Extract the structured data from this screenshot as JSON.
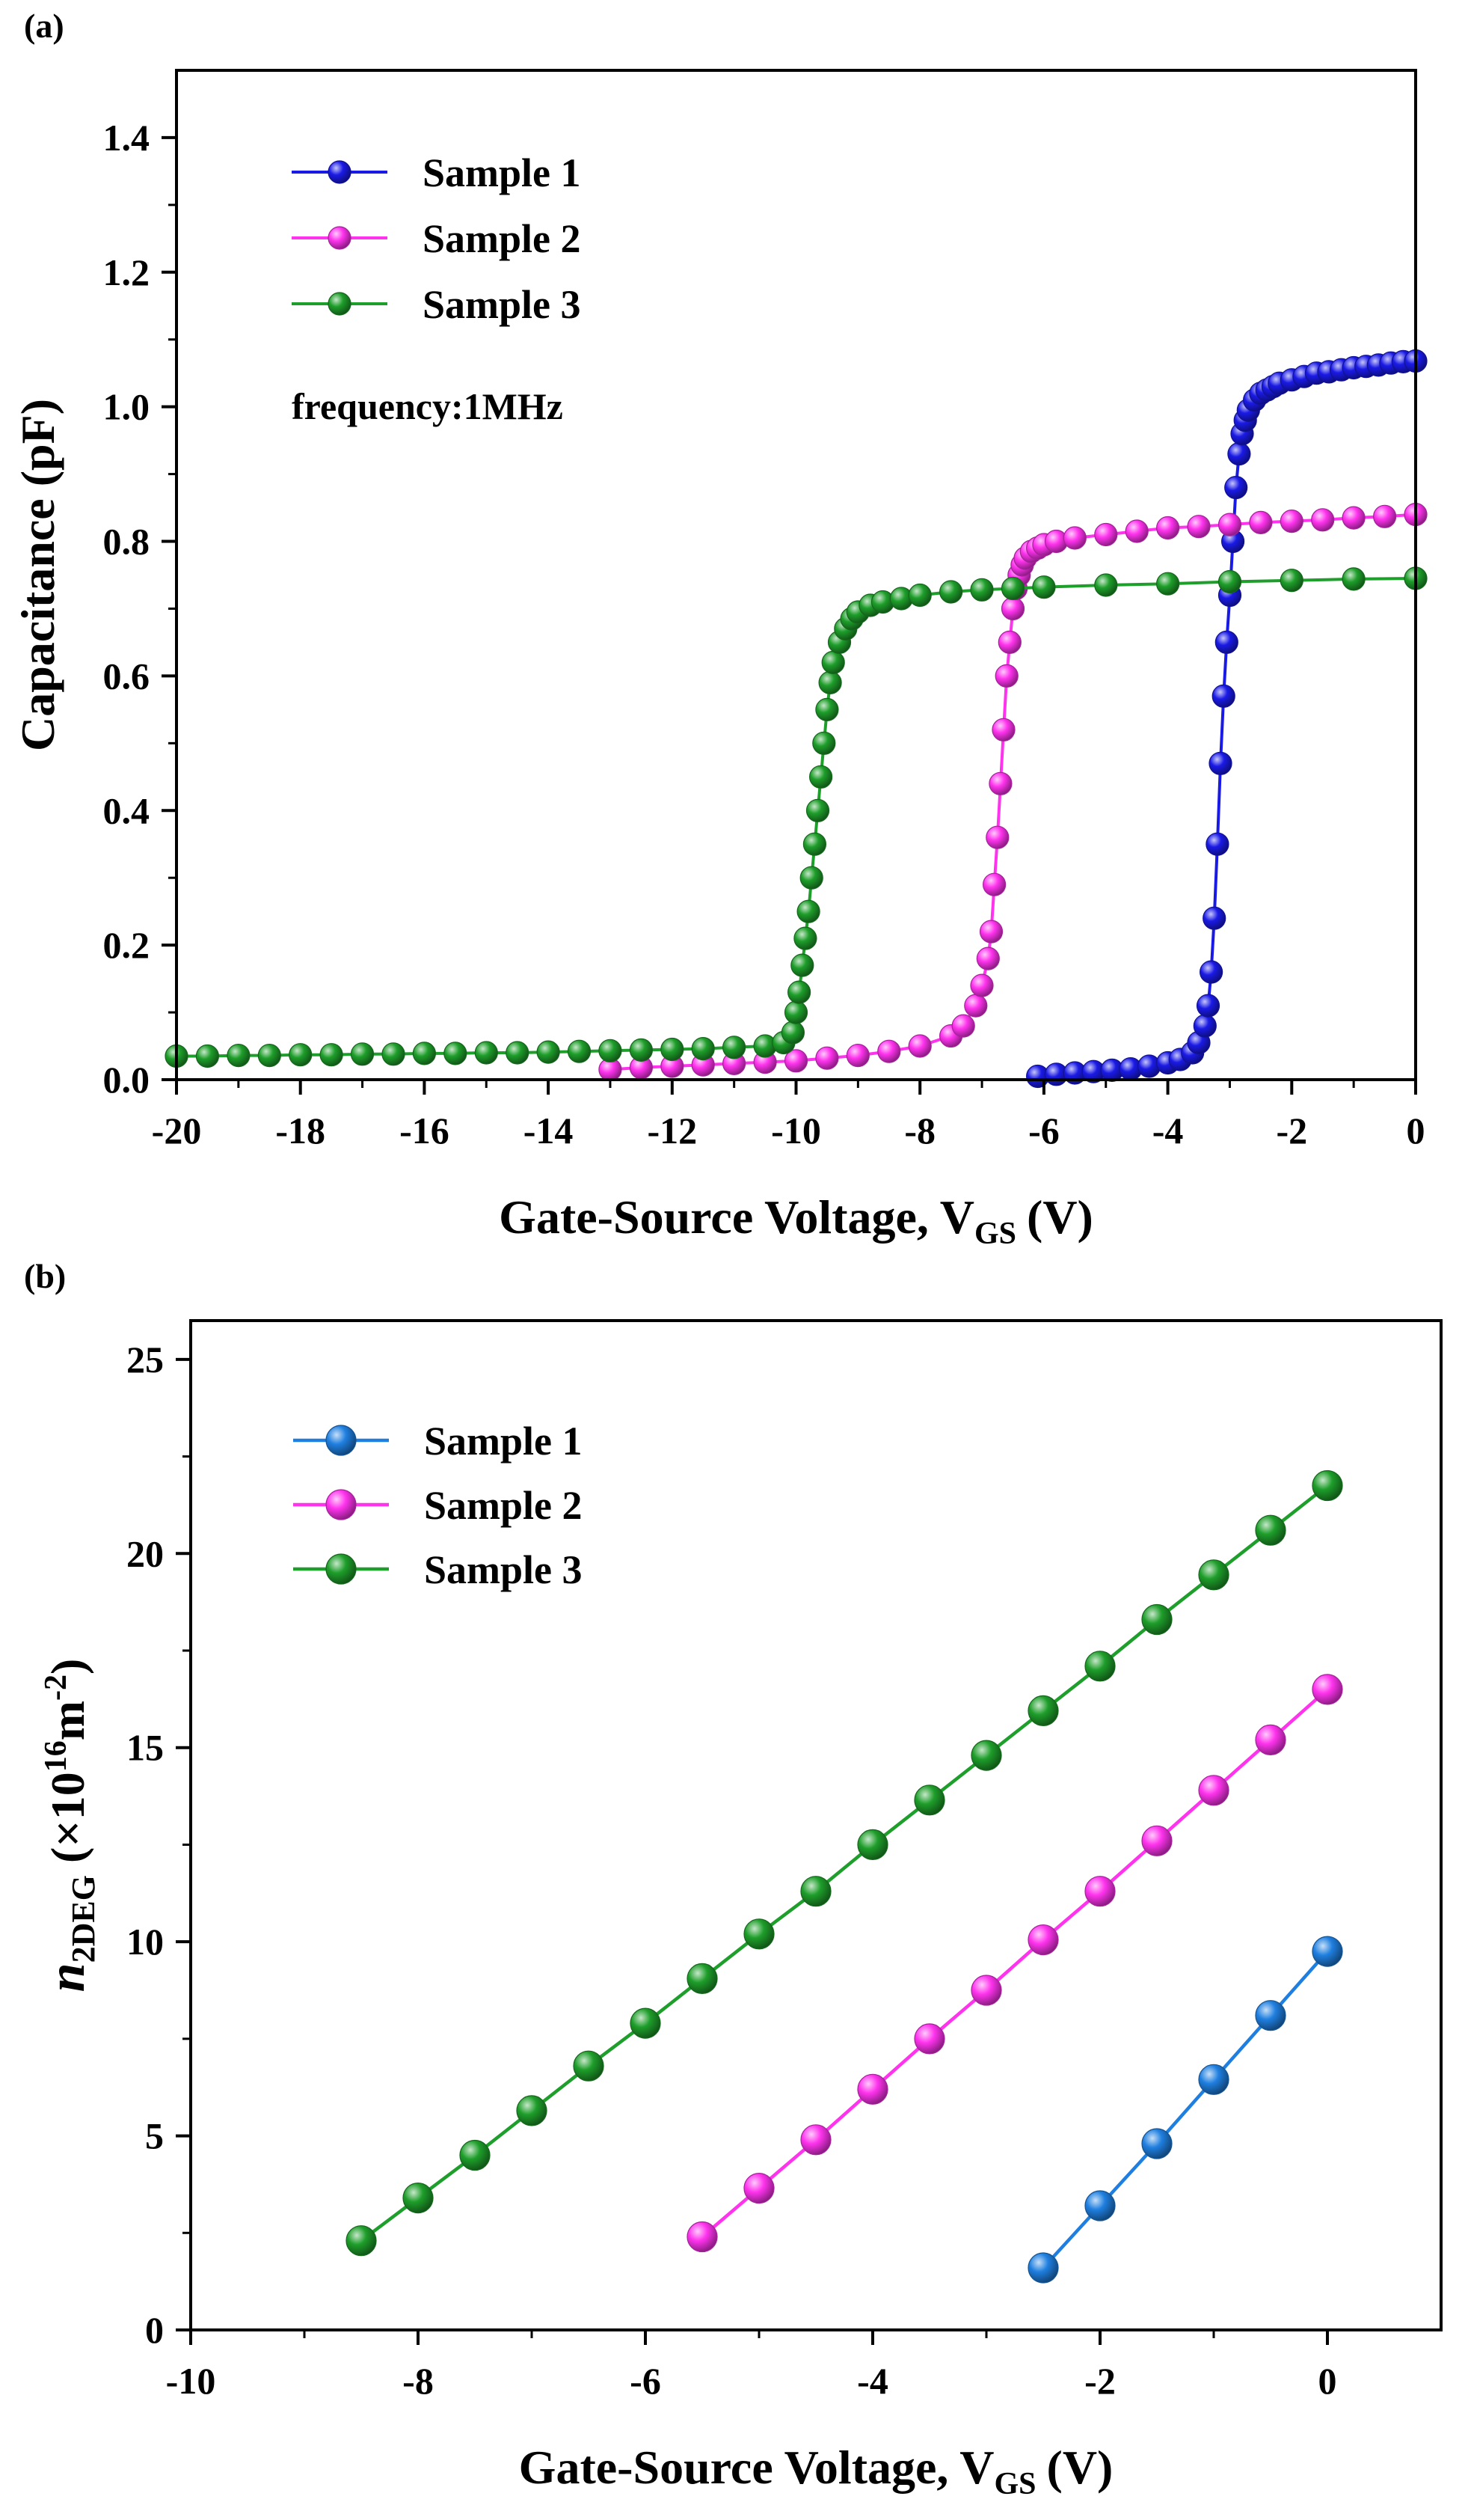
{
  "chart_data": [
    {
      "type": "scatter",
      "panel_label": "(a)",
      "title": "",
      "xlabel": "Gate-Source Voltage, V",
      "xlabel_sub": "GS",
      "xlabel_unit": "(V)",
      "ylabel": "Capacitance (pF)",
      "xlim": [
        -20,
        0
      ],
      "ylim": [
        0,
        1.5
      ],
      "xticks": [
        -20,
        -18,
        -16,
        -14,
        -12,
        -10,
        -8,
        -6,
        -4,
        -2,
        0
      ],
      "xtick_labels": [
        "-20",
        "-18",
        "-16",
        "-14",
        "-12",
        "-10",
        "-8",
        "-6",
        "-4",
        "-2",
        "0"
      ],
      "yticks": [
        0,
        0.2,
        0.4,
        0.6,
        0.8,
        1.0,
        1.2,
        1.4
      ],
      "ytick_labels": [
        "0.0",
        "0.2",
        "0.4",
        "0.6",
        "0.8",
        "1.0",
        "1.2",
        "1.4"
      ],
      "annotation": "frequency:1MHz",
      "legend_position": "top-left",
      "series": [
        {
          "name": "Sample 1",
          "color": "#1a1ae6",
          "x": [
            -6.1,
            -5.8,
            -5.5,
            -5.2,
            -4.9,
            -4.6,
            -4.3,
            -4.0,
            -3.8,
            -3.6,
            -3.5,
            -3.4,
            -3.35,
            -3.3,
            -3.25,
            -3.2,
            -3.15,
            -3.1,
            -3.05,
            -3.0,
            -2.95,
            -2.9,
            -2.85,
            -2.8,
            -2.75,
            -2.7,
            -2.6,
            -2.5,
            -2.4,
            -2.3,
            -2.2,
            -2.0,
            -1.8,
            -1.6,
            -1.4,
            -1.2,
            -1.0,
            -0.8,
            -0.6,
            -0.4,
            -0.2,
            0.0
          ],
          "y": [
            0.005,
            0.008,
            0.01,
            0.012,
            0.014,
            0.016,
            0.02,
            0.025,
            0.03,
            0.04,
            0.055,
            0.08,
            0.11,
            0.16,
            0.24,
            0.35,
            0.47,
            0.57,
            0.65,
            0.72,
            0.8,
            0.88,
            0.93,
            0.96,
            0.98,
            0.995,
            1.01,
            1.02,
            1.025,
            1.03,
            1.035,
            1.04,
            1.045,
            1.05,
            1.052,
            1.055,
            1.058,
            1.06,
            1.062,
            1.065,
            1.067,
            1.068
          ]
        },
        {
          "name": "Sample 2",
          "color": "#ff33ee",
          "x": [
            -13.0,
            -12.5,
            -12.0,
            -11.5,
            -11.0,
            -10.5,
            -10.0,
            -9.5,
            -9.0,
            -8.5,
            -8.0,
            -7.5,
            -7.3,
            -7.1,
            -7.0,
            -6.9,
            -6.85,
            -6.8,
            -6.75,
            -6.7,
            -6.65,
            -6.6,
            -6.55,
            -6.5,
            -6.45,
            -6.4,
            -6.35,
            -6.3,
            -6.2,
            -6.1,
            -6.0,
            -5.8,
            -5.5,
            -5.0,
            -4.5,
            -4.0,
            -3.5,
            -3.0,
            -2.5,
            -2.0,
            -1.5,
            -1.0,
            -0.5,
            0.0
          ],
          "y": [
            0.015,
            0.018,
            0.02,
            0.022,
            0.024,
            0.026,
            0.028,
            0.032,
            0.036,
            0.042,
            0.05,
            0.065,
            0.08,
            0.11,
            0.14,
            0.18,
            0.22,
            0.29,
            0.36,
            0.44,
            0.52,
            0.6,
            0.65,
            0.7,
            0.73,
            0.75,
            0.765,
            0.775,
            0.785,
            0.79,
            0.795,
            0.8,
            0.805,
            0.81,
            0.815,
            0.82,
            0.822,
            0.825,
            0.828,
            0.83,
            0.832,
            0.835,
            0.837,
            0.84
          ]
        },
        {
          "name": "Sample 3",
          "color": "#1e9e2a",
          "x": [
            -20.0,
            -19.5,
            -19.0,
            -18.5,
            -18.0,
            -17.5,
            -17.0,
            -16.5,
            -16.0,
            -15.5,
            -15.0,
            -14.5,
            -14.0,
            -13.5,
            -13.0,
            -12.5,
            -12.0,
            -11.5,
            -11.0,
            -10.5,
            -10.2,
            -10.05,
            -10.0,
            -9.95,
            -9.9,
            -9.85,
            -9.8,
            -9.75,
            -9.7,
            -9.65,
            -9.6,
            -9.55,
            -9.5,
            -9.45,
            -9.4,
            -9.3,
            -9.2,
            -9.1,
            -9.0,
            -8.8,
            -8.6,
            -8.3,
            -8.0,
            -7.5,
            -7.0,
            -6.5,
            -6.0,
            -5.0,
            -4.0,
            -3.0,
            -2.0,
            -1.0,
            0.0
          ],
          "y": [
            0.035,
            0.035,
            0.036,
            0.036,
            0.037,
            0.037,
            0.038,
            0.038,
            0.039,
            0.039,
            0.04,
            0.04,
            0.041,
            0.042,
            0.043,
            0.044,
            0.045,
            0.046,
            0.048,
            0.05,
            0.055,
            0.07,
            0.1,
            0.13,
            0.17,
            0.21,
            0.25,
            0.3,
            0.35,
            0.4,
            0.45,
            0.5,
            0.55,
            0.59,
            0.62,
            0.65,
            0.67,
            0.685,
            0.695,
            0.705,
            0.71,
            0.715,
            0.72,
            0.725,
            0.728,
            0.73,
            0.732,
            0.735,
            0.737,
            0.74,
            0.742,
            0.744,
            0.745
          ]
        }
      ]
    },
    {
      "type": "line",
      "panel_label": "(b)",
      "title": "",
      "xlabel": "Gate-Source Voltage, V",
      "xlabel_sub": "GS",
      "xlabel_unit": "(V)",
      "ylabel": "n",
      "ylabel_sub": "2DEG",
      "ylabel_unit_pre": " (×10",
      "ylabel_exp1": "16",
      "ylabel_unit_mid": "m",
      "ylabel_exp2": "-2",
      "ylabel_unit_post": ")",
      "xlim": [
        -10,
        1
      ],
      "ylim": [
        0,
        26
      ],
      "xticks": [
        -10,
        -8,
        -6,
        -4,
        -2,
        0
      ],
      "xtick_labels": [
        "-10",
        "-8",
        "-6",
        "-4",
        "-2",
        "0"
      ],
      "minor_xticks": [
        -9,
        -7,
        -5,
        -3,
        -1
      ],
      "yticks": [
        0,
        5,
        10,
        15,
        20,
        25
      ],
      "ytick_labels": [
        "0",
        "5",
        "10",
        "15",
        "20",
        "25"
      ],
      "legend_position": "top-left",
      "series": [
        {
          "name": "Sample 1",
          "color": "#1f7fe0",
          "x": [
            -2.5,
            -2.0,
            -1.5,
            -1.0,
            -0.5,
            0.0
          ],
          "y": [
            1.6,
            3.2,
            4.8,
            6.45,
            8.1,
            9.75
          ]
        },
        {
          "name": "Sample 2",
          "color": "#ff33ee",
          "x": [
            -5.5,
            -5.0,
            -4.5,
            -4.0,
            -3.5,
            -3.0,
            -2.5,
            -2.0,
            -1.5,
            -1.0,
            -0.5,
            0.0
          ],
          "y": [
            2.4,
            3.65,
            4.9,
            6.2,
            7.5,
            8.75,
            10.05,
            11.3,
            12.6,
            13.9,
            15.2,
            16.5
          ]
        },
        {
          "name": "Sample 3",
          "color": "#1e9e2a",
          "x": [
            -8.5,
            -8.0,
            -7.5,
            -7.0,
            -6.5,
            -6.0,
            -5.5,
            -5.0,
            -4.5,
            -4.0,
            -3.5,
            -3.0,
            -2.5,
            -2.0,
            -1.5,
            -1.0,
            -0.5,
            0.0
          ],
          "y": [
            2.3,
            3.4,
            4.5,
            5.65,
            6.8,
            7.9,
            9.05,
            10.2,
            11.3,
            12.5,
            13.65,
            14.8,
            15.95,
            17.1,
            18.3,
            19.45,
            20.6,
            21.75
          ]
        }
      ]
    }
  ]
}
